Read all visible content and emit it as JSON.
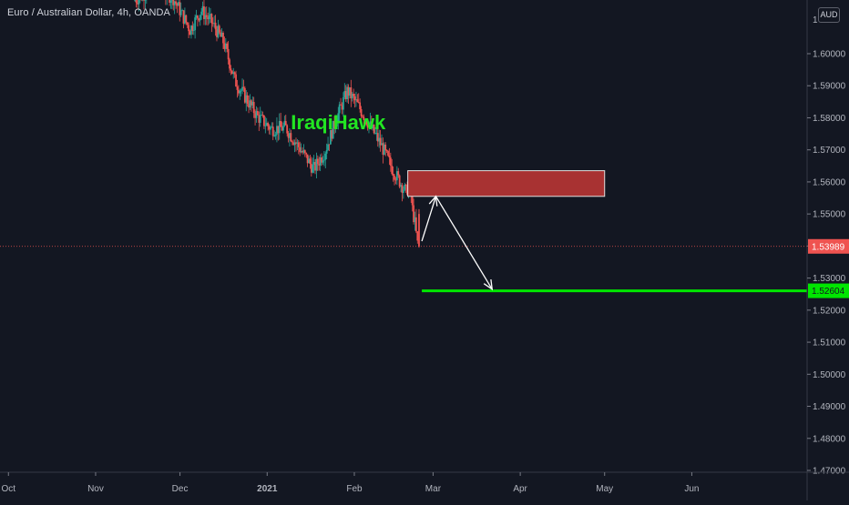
{
  "header": {
    "title": "Euro / Australian Dollar, 4h, OANDA",
    "currency": "AUD"
  },
  "chart_data": {
    "type": "candlestick",
    "title": "Euro / Australian Dollar, 4h, OANDA",
    "xlabel": "",
    "ylabel": "",
    "ylim": [
      1.467,
      1.6182
    ],
    "y_ticks": [
      1.47,
      1.48,
      1.49,
      1.5,
      1.51,
      1.52,
      1.53,
      1.54,
      1.55,
      1.56,
      1.57,
      1.58,
      1.59,
      1.6
    ],
    "y_tick_labels": [
      "1.47000",
      "1.48000",
      "1.49000",
      "1.50000",
      "1.51000",
      "1.52000",
      "1.53000",
      "1.54000",
      "1.55000",
      "1.56000",
      "1.57000",
      "1.58000",
      "1.59000",
      "1.60000"
    ],
    "y_top_partial_label": "1",
    "x_ticks": [
      {
        "label": "Oct",
        "date": "2020-10-01"
      },
      {
        "label": "Nov",
        "date": "2020-11-01"
      },
      {
        "label": "Dec",
        "date": "2020-12-01"
      },
      {
        "label": "2021",
        "date": "2021-01-01"
      },
      {
        "label": "Feb",
        "date": "2021-02-01"
      },
      {
        "label": "Mar",
        "date": "2021-03-01"
      },
      {
        "label": "Apr",
        "date": "2021-04-01"
      },
      {
        "label": "May",
        "date": "2021-05-01"
      },
      {
        "label": "Jun",
        "date": "2021-06-01"
      }
    ],
    "xlim": [
      "2020-09-28",
      "2021-07-12"
    ],
    "price_path": [
      {
        "date": "2020-11-15",
        "price": 1.6165
      },
      {
        "date": "2020-11-22",
        "price": 1.6205
      },
      {
        "date": "2020-11-29",
        "price": 1.6175
      },
      {
        "date": "2020-12-05",
        "price": 1.6075
      },
      {
        "date": "2020-12-09",
        "price": 1.6135
      },
      {
        "date": "2020-12-13",
        "price": 1.6095
      },
      {
        "date": "2020-12-17",
        "price": 1.6035
      },
      {
        "date": "2020-12-21",
        "price": 1.5915
      },
      {
        "date": "2020-12-25",
        "price": 1.586
      },
      {
        "date": "2020-12-29",
        "price": 1.5805
      },
      {
        "date": "2021-01-03",
        "price": 1.5765
      },
      {
        "date": "2021-01-08",
        "price": 1.577
      },
      {
        "date": "2021-01-13",
        "price": 1.5705
      },
      {
        "date": "2021-01-18",
        "price": 1.564
      },
      {
        "date": "2021-01-22",
        "price": 1.5695
      },
      {
        "date": "2021-01-26",
        "price": 1.5795
      },
      {
        "date": "2021-01-30",
        "price": 1.5885
      },
      {
        "date": "2021-02-03",
        "price": 1.5835
      },
      {
        "date": "2021-02-07",
        "price": 1.5775
      },
      {
        "date": "2021-02-11",
        "price": 1.5715
      },
      {
        "date": "2021-02-15",
        "price": 1.564
      },
      {
        "date": "2021-02-18",
        "price": 1.5595
      },
      {
        "date": "2021-02-20",
        "price": 1.5565
      },
      {
        "date": "2021-02-21",
        "price": 1.562
      },
      {
        "date": "2021-02-22",
        "price": 1.552
      },
      {
        "date": "2021-02-23",
        "price": 1.547
      },
      {
        "date": "2021-02-24",
        "price": 1.5399
      }
    ],
    "current_price": {
      "value": 1.53989,
      "label": "1.53989",
      "color": "#ef5350"
    },
    "annotations": {
      "watermark": {
        "text": "IraqiHawk",
        "color": "#22e622",
        "date": "2021-01-01",
        "price": 1.5787
      },
      "supply_zone": {
        "date_start": "2021-02-20",
        "date_end": "2021-05-01",
        "price_top": 1.5635,
        "price_bottom": 1.5555,
        "color": "#a83232"
      },
      "projection_path": [
        {
          "date": "2021-02-25",
          "price": 1.5415
        },
        {
          "date": "2021-03-02",
          "price": 1.5555
        },
        {
          "date": "2021-03-22",
          "price": 1.5265
        }
      ],
      "target_line": {
        "value": 1.52604,
        "label": "1.52604",
        "date_start": "2021-02-25",
        "color": "#00e600"
      }
    },
    "colors": {
      "background": "#131722",
      "up": "#26a69a",
      "down": "#ef5350",
      "axis_text": "#b2b5be",
      "arrow": "#ffffff"
    }
  }
}
